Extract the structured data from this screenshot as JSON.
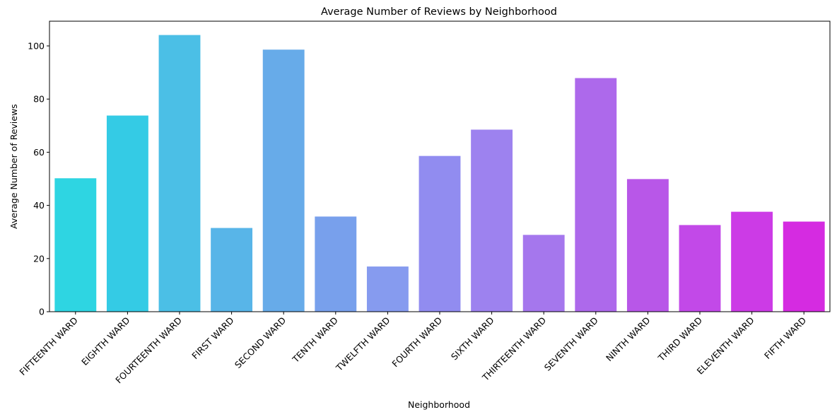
{
  "chart_data": {
    "type": "bar",
    "title": "Average Number of Reviews by Neighborhood",
    "xlabel": "Neighborhood",
    "ylabel": "Average Number of Reviews",
    "categories": [
      "FIFTEENTH WARD",
      "EIGHTH WARD",
      "FOURTEENTH WARD",
      "FIRST WARD",
      "SECOND WARD",
      "TENTH WARD",
      "TWELFTH WARD",
      "FOURTH WARD",
      "SIXTH WARD",
      "THIRTEENTH WARD",
      "SEVENTH WARD",
      "NINTH WARD",
      "THIRD WARD",
      "ELEVENTH WARD",
      "FIFTH WARD"
    ],
    "values": [
      50.2,
      73.8,
      104.1,
      31.5,
      98.6,
      35.8,
      17.0,
      58.6,
      68.5,
      28.9,
      87.9,
      49.9,
      32.6,
      37.6,
      33.9
    ],
    "colors": [
      "#2ed5e2",
      "#34cbe5",
      "#4bbfe6",
      "#58b5e8",
      "#67abe9",
      "#78a0ec",
      "#869bef",
      "#918cf0",
      "#9d82ef",
      "#a577ed",
      "#ad69eb",
      "#b857e8",
      "#c249e8",
      "#cc3be6",
      "#d52be1"
    ],
    "ylim": [
      0,
      109.3
    ],
    "yticks": [
      0,
      20,
      40,
      60,
      80,
      100
    ],
    "grid": false,
    "legend": "none"
  }
}
